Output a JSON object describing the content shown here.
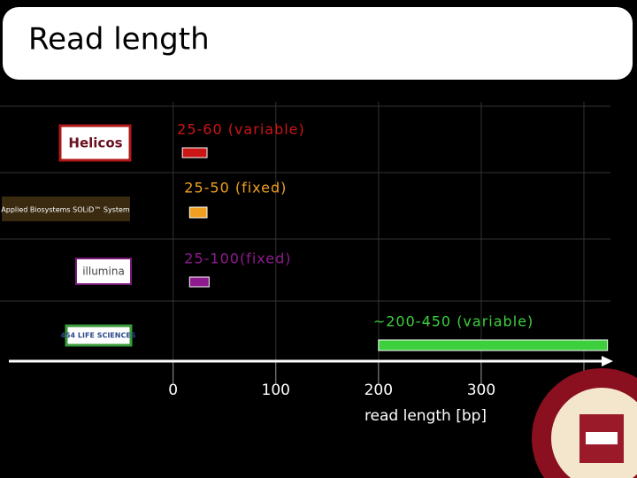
{
  "title": "Read length",
  "chart_data": {
    "type": "range-bar",
    "categories": [
      "Helicos",
      "Applied Biosystems SOLiD™ System",
      "illumina",
      "454 LIFE SCIENCES"
    ],
    "starts": [
      9,
      16,
      16,
      200
    ],
    "ends": [
      33,
      33,
      35,
      423
    ],
    "colors": [
      "#cc1515",
      "#f0a020",
      "#8e1a8e",
      "#3ecf3e"
    ],
    "annotations": [
      "25-60 (variable)",
      "25-50 (fixed)",
      "25-100(fixed)",
      "~200-450 (variable)"
    ],
    "xlabel": "read length [bp]",
    "xlim": [
      -160,
      425
    ],
    "xticks": [
      0,
      100,
      200,
      300,
      400
    ],
    "grid": true
  }
}
